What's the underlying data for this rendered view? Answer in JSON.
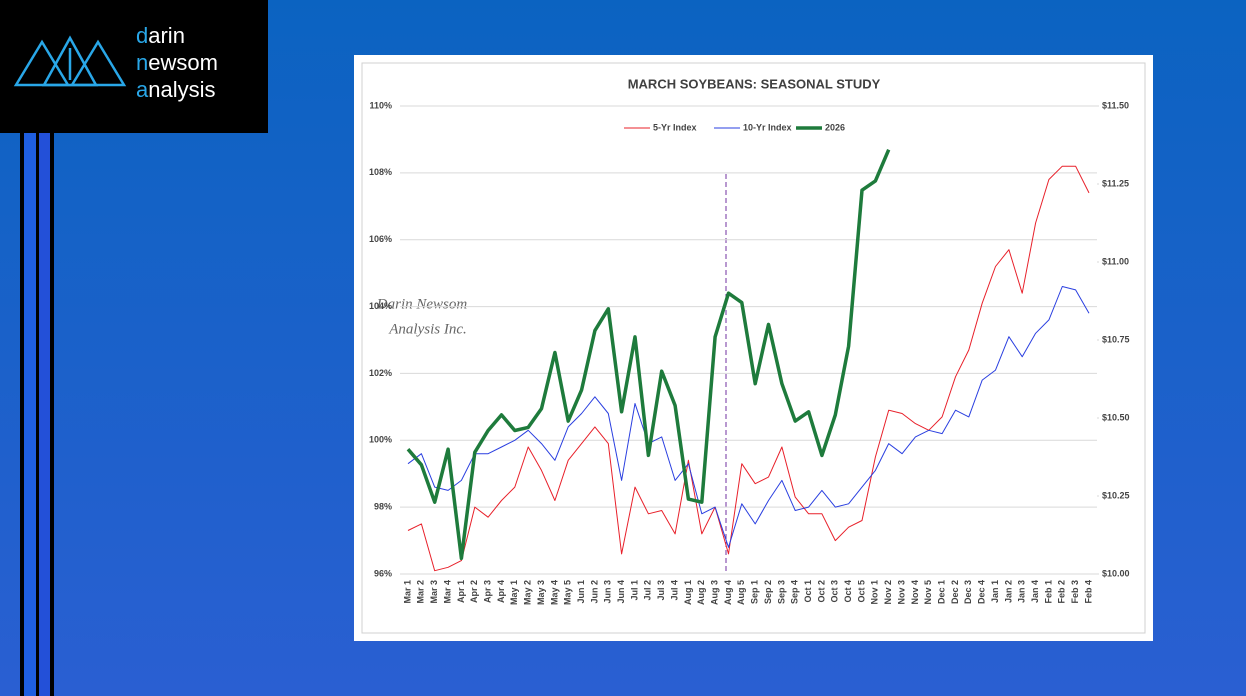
{
  "logo": {
    "lines": [
      "darin",
      "newsom",
      "analysis"
    ]
  },
  "chart_data": {
    "type": "line",
    "title": "MARCH SOYBEANS: SEASONAL STUDY",
    "watermark": [
      "Darin Newsom",
      "Analysis Inc."
    ],
    "categories": [
      "Mar 1",
      "Mar 2",
      "Mar 3",
      "Mar 4",
      "Apr 1",
      "Apr 2",
      "Apr 3",
      "Apr 4",
      "May 1",
      "May 2",
      "May 3",
      "May 4",
      "May 5",
      "Jun 1",
      "Jun 2",
      "Jun 3",
      "Jun 4",
      "Jul 1",
      "Jul 2",
      "Jul 3",
      "Jul 4",
      "Aug 1",
      "Aug 2",
      "Aug 3",
      "Aug 4",
      "Aug 5",
      "Sep 1",
      "Sep 2",
      "Sep 3",
      "Sep 4",
      "Oct 1",
      "Oct 2",
      "Oct 3",
      "Oct 4",
      "Oct 5",
      "Nov 1",
      "Nov 2",
      "Nov 3",
      "Nov 4",
      "Nov 5",
      "Dec 1",
      "Dec 2",
      "Dec 3",
      "Dec 4",
      "Jan 1",
      "Jan 2",
      "Jan 3",
      "Jan 4",
      "Feb 1",
      "Feb 2",
      "Feb 3",
      "Feb 4"
    ],
    "series": [
      {
        "name": "5-Yr Index",
        "color": "#e8202a",
        "width": 1,
        "values": [
          97.3,
          97.5,
          96.1,
          96.2,
          96.4,
          98.0,
          97.7,
          98.2,
          98.6,
          99.8,
          99.1,
          98.2,
          99.4,
          99.9,
          100.4,
          99.9,
          96.6,
          98.6,
          97.8,
          97.9,
          97.2,
          99.4,
          97.2,
          98.0,
          96.6,
          99.3,
          98.7,
          98.9,
          99.8,
          98.3,
          97.8,
          97.8,
          97.0,
          97.4,
          97.6,
          99.5,
          100.9,
          100.8,
          100.5,
          100.3,
          100.7,
          101.9,
          102.7,
          104.1,
          105.2,
          105.7,
          104.4,
          106.5,
          107.8,
          108.2,
          108.2,
          107.4
        ]
      },
      {
        "name": "10-Yr Index",
        "color": "#2a3fe0",
        "width": 1,
        "values": [
          99.3,
          99.6,
          98.6,
          98.5,
          98.8,
          99.6,
          99.6,
          99.8,
          100.0,
          100.3,
          99.9,
          99.4,
          100.4,
          100.8,
          101.3,
          100.8,
          98.8,
          101.1,
          99.9,
          100.1,
          98.8,
          99.3,
          97.8,
          98.0,
          96.8,
          98.1,
          97.5,
          98.2,
          98.8,
          97.9,
          98.0,
          98.5,
          98.0,
          98.1,
          98.6,
          99.1,
          99.9,
          99.6,
          100.1,
          100.3,
          100.2,
          100.9,
          100.7,
          101.8,
          102.1,
          103.1,
          102.5,
          103.2,
          103.6,
          104.6,
          104.5,
          103.8
        ]
      },
      {
        "name": "2026",
        "color": "#1e7b3c",
        "width": 3.5,
        "axis": "y2",
        "values": [
          10.4,
          10.35,
          10.23,
          10.4,
          10.05,
          10.39,
          10.46,
          10.51,
          10.46,
          10.47,
          10.53,
          10.71,
          10.49,
          10.59,
          10.78,
          10.85,
          10.52,
          10.76,
          10.38,
          10.65,
          10.54,
          10.24,
          10.23,
          10.76,
          10.9,
          10.87,
          10.61,
          10.8,
          10.61,
          10.49,
          10.52,
          10.38,
          10.51,
          10.73,
          11.23,
          11.26,
          11.36,
          null,
          null,
          null,
          null,
          null,
          null,
          null,
          null,
          null,
          null,
          null,
          null,
          null,
          null,
          null
        ]
      }
    ],
    "ylim": [
      96,
      110
    ],
    "yticks": [
      {
        "value": 96,
        "label": "96%"
      },
      {
        "value": 98,
        "label": "98%"
      },
      {
        "value": 100,
        "label": "100%"
      },
      {
        "value": 102,
        "label": "102%"
      },
      {
        "value": 104,
        "label": "104%"
      },
      {
        "value": 106,
        "label": "106%"
      },
      {
        "value": 108,
        "label": "108%"
      },
      {
        "value": 110,
        "label": "110%"
      }
    ],
    "y2lim": [
      10,
      11.5
    ],
    "y2ticks": [
      {
        "value": 10,
        "label": "$10.00"
      },
      {
        "value": 10.25,
        "label": "$10.25"
      },
      {
        "value": 10.5,
        "label": "$10.50"
      },
      {
        "value": 10.75,
        "label": "$10.75"
      },
      {
        "value": 11,
        "label": "$11.00"
      },
      {
        "value": 11.25,
        "label": "$11.25"
      },
      {
        "value": 11.5,
        "label": "$11.50"
      }
    ],
    "grid": true,
    "legend": "top"
  }
}
